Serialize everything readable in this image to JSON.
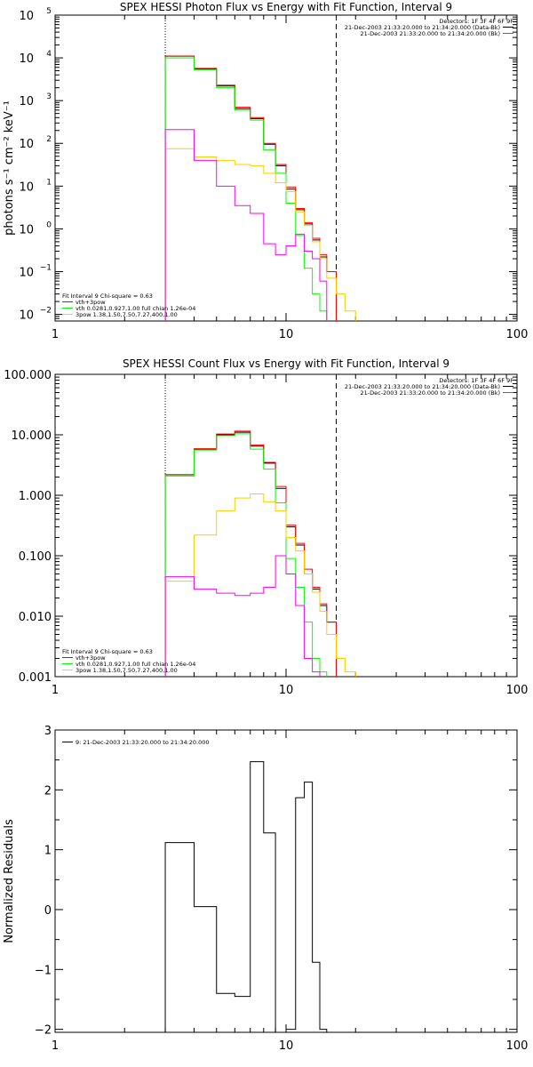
{
  "chart_data": [
    {
      "type": "line",
      "id": "photon",
      "title": "SPEX HESSI Photon Flux vs Energy with Fit Function, Interval 9",
      "xlabel": "",
      "ylabel": "photons s⁻¹ cm⁻² keV⁻¹",
      "xscale": "log",
      "yscale": "log",
      "xlim": [
        1,
        100
      ],
      "ylim": [
        0.007,
        100000
      ],
      "xticks": [
        {
          "value": 1,
          "label": "1"
        },
        {
          "value": 10,
          "label": "10"
        },
        {
          "value": 100,
          "label": "100"
        }
      ],
      "yticks": [
        {
          "value": 0.01,
          "base": "10",
          "exp": "−2"
        },
        {
          "value": 0.1,
          "base": "10",
          "exp": "−1"
        },
        {
          "value": 1,
          "base": "10",
          "exp": "0"
        },
        {
          "value": 10,
          "base": "10",
          "exp": "1"
        },
        {
          "value": 100,
          "base": "10",
          "exp": "2"
        },
        {
          "value": 1000,
          "base": "10",
          "exp": "3"
        },
        {
          "value": 10000,
          "base": "10",
          "exp": "4"
        },
        {
          "value": 100000,
          "base": "10",
          "exp": "5"
        }
      ],
      "vlines": [
        {
          "x": 3.0,
          "style": "dotted"
        },
        {
          "x": 16.5,
          "style": "dashed"
        }
      ],
      "legend_right": {
        "position": "top-right",
        "title": "Detectors: 1F 3F 4F 6F 9F",
        "entries": [
          {
            "label": "21-Dec-2003 21:33:20.000 to 21:34:20.000 (Data-Bk)",
            "color": "#000000"
          },
          {
            "label": "21-Dec-2003 21:33:20.000 to 21:34:20.000 (Bk)",
            "color": "#ff00ff"
          }
        ]
      },
      "legend_left": {
        "position": "bottom-left",
        "title": "Fit Interval 9   Chi-square = 0.63",
        "entries": [
          {
            "label": "vth+3pow",
            "color": "#ff0000"
          },
          {
            "label": "vth 0.0281,0.927,1.00   full chian 1.26e-04",
            "color": "#00ff00"
          },
          {
            "label": "3pow 1.38,1.50,7.50,7.27,400,1.00",
            "color": "#ffcc00"
          }
        ]
      },
      "bin_edges": [
        3.0,
        4.0,
        5.0,
        6.0,
        7.0,
        8.0,
        9.0,
        10.0,
        11.0,
        12.0,
        13.0,
        14.0,
        15.0,
        16.5,
        18.0,
        20.0,
        22.0
      ],
      "series": [
        {
          "name": "Data-Bk",
          "color": "#000000",
          "values": [
            11000,
            5500,
            2200,
            650,
            380,
            95,
            30,
            8.5,
            2.8,
            1.3,
            0.55,
            0.22,
            0.1
          ]
        },
        {
          "name": "vth+3pow",
          "color": "#ff0000",
          "values": [
            11000,
            5700,
            2300,
            700,
            400,
            100,
            32,
            9.5,
            3.0,
            1.4,
            0.6,
            0.25,
            0.1
          ]
        },
        {
          "name": "vth",
          "color": "#00ff00",
          "values": [
            10000,
            5300,
            2000,
            600,
            350,
            70,
            20,
            4.0,
            0.7,
            0.12,
            0.03,
            0.012,
            0.006
          ]
        },
        {
          "name": "3pow",
          "color": "#ffcc00",
          "values": [
            75,
            48,
            40,
            32,
            30,
            20,
            12,
            7.5,
            2.5,
            1.2,
            0.5,
            0.2,
            0.07,
            0.03,
            0.012,
            0.006
          ]
        },
        {
          "name": "Bk",
          "color": "#ff00ff",
          "values": [
            210,
            40,
            10,
            3.5,
            2.3,
            0.45,
            0.25,
            0.4,
            0.75,
            0.3,
            0.2,
            0.06,
            0.006
          ]
        }
      ]
    },
    {
      "type": "line",
      "id": "count",
      "title": "SPEX HESSI Count Flux vs Energy with Fit Function, Interval 9",
      "xlabel": "",
      "ylabel": "",
      "xscale": "log",
      "yscale": "log",
      "xlim": [
        1,
        100
      ],
      "ylim": [
        0.001,
        100
      ],
      "xticks": [
        {
          "value": 1,
          "label": "1"
        },
        {
          "value": 10,
          "label": "10"
        },
        {
          "value": 100,
          "label": "100"
        }
      ],
      "yticks": [
        {
          "value": 0.001,
          "label": "0.001"
        },
        {
          "value": 0.01,
          "label": "0.010"
        },
        {
          "value": 0.1,
          "label": "0.100"
        },
        {
          "value": 1,
          "label": "1.000"
        },
        {
          "value": 10,
          "label": "10.000"
        },
        {
          "value": 100,
          "label": "100.000"
        }
      ],
      "vlines": [
        {
          "x": 3.0,
          "style": "dotted"
        },
        {
          "x": 16.5,
          "style": "dashed"
        }
      ],
      "legend_right": {
        "position": "top-right",
        "title": "Detectors: 1F 3F 4F 6F 9F",
        "entries": [
          {
            "label": "21-Dec-2003 21:33:20.000 to 21:34:20.000 (Data-Bk)",
            "color": "#000000"
          },
          {
            "label": "21-Dec-2003 21:33:20.000 to 21:34:20.000 (Bk)",
            "color": "#ff00ff"
          }
        ]
      },
      "legend_left": {
        "position": "bottom-left",
        "title": "Fit Interval 9   Chi-square = 0.63",
        "entries": [
          {
            "label": "vth+3pow",
            "color": "#ff0000"
          },
          {
            "label": "vth 0.0281,0.927,1.00   full chian 1.26e-04",
            "color": "#00ff00"
          },
          {
            "label": "3pow 1.38,1.50,7.50,7.27,400,1.00",
            "color": "#ffcc00"
          }
        ]
      },
      "bin_edges": [
        3.0,
        4.0,
        5.0,
        6.0,
        7.0,
        8.0,
        9.0,
        10.0,
        11.0,
        12.0,
        13.0,
        14.0,
        15.0,
        16.5,
        18.0,
        20.0,
        22.0
      ],
      "series": [
        {
          "name": "Data-Bk",
          "color": "#000000",
          "values": [
            2.1,
            5.8,
            10.0,
            11.0,
            6.5,
            3.4,
            1.3,
            0.3,
            0.15,
            0.05,
            0.028,
            0.015,
            0.008
          ]
        },
        {
          "name": "vth+3pow",
          "color": "#ff0000",
          "values": [
            2.2,
            5.9,
            10.3,
            11.5,
            6.8,
            3.5,
            1.4,
            0.32,
            0.16,
            0.06,
            0.03,
            0.016,
            0.008
          ]
        },
        {
          "name": "vth",
          "color": "#00ff00",
          "values": [
            2.1,
            5.6,
            9.7,
            10.4,
            5.8,
            2.7,
            0.75,
            0.09,
            0.03,
            0.008,
            0.002,
            0.0012
          ]
        },
        {
          "name": "3pow",
          "color": "#ffcc00",
          "values": [
            0.038,
            0.22,
            0.55,
            0.9,
            1.05,
            0.78,
            0.55,
            0.2,
            0.12,
            0.05,
            0.025,
            0.012,
            0.005,
            0.002,
            0.0012
          ]
        },
        {
          "name": "Bk",
          "color": "#ff00ff",
          "values": [
            0.045,
            0.028,
            0.024,
            0.022,
            0.024,
            0.03,
            0.1,
            0.05,
            0.015,
            0.002,
            0.0012
          ]
        }
      ]
    },
    {
      "type": "line",
      "id": "residuals",
      "title": "",
      "xlabel": "",
      "ylabel": "Normalized Residuals",
      "xscale": "log",
      "yscale": "linear",
      "xlim": [
        1,
        100
      ],
      "ylim": [
        -2.05,
        3
      ],
      "xticks": [
        {
          "value": 1,
          "label": "1"
        },
        {
          "value": 10,
          "label": "10"
        },
        {
          "value": 100,
          "label": "100"
        }
      ],
      "yticks": [
        {
          "value": -2,
          "label": "−2"
        },
        {
          "value": -1,
          "label": "−1"
        },
        {
          "value": 0,
          "label": "0"
        },
        {
          "value": 1,
          "label": "1"
        },
        {
          "value": 2,
          "label": "2"
        },
        {
          "value": 3,
          "label": "3"
        }
      ],
      "legend_left": {
        "position": "top-left",
        "title": "",
        "entries": [
          {
            "label": "9: 21-Dec-2003 21:33:20.000 to 21:34:20.000",
            "color": "#000000"
          }
        ]
      },
      "bin_edges": [
        3.0,
        4.0,
        5.0,
        6.0,
        7.0,
        8.0,
        9.0,
        10.0,
        11.0,
        12.0,
        13.0,
        14.0,
        15.0
      ],
      "series": [
        {
          "name": "9: 21-Dec-2003 21:33:20.000 to 21:34:20.000",
          "color": "#000000",
          "values": [
            1.12,
            0.05,
            -1.4,
            -1.45,
            2.47,
            1.28,
            -2.05,
            -2.0,
            1.87,
            2.13,
            -0.88,
            -2.0
          ]
        }
      ]
    }
  ]
}
